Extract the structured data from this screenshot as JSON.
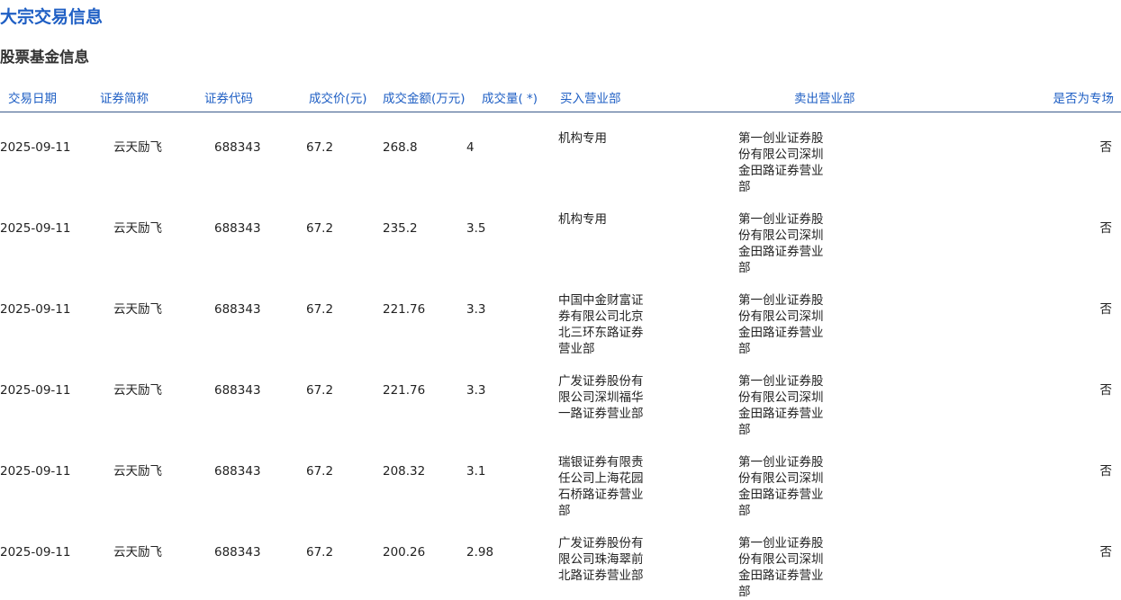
{
  "title": "大宗交易信息",
  "subtitle": "股票基金信息",
  "headers": [
    "交易日期",
    "证券简称",
    "证券代码",
    "成交价(元)",
    "成交金额(万元)",
    "成交量( *)",
    "买入营业部",
    "卖出营业部",
    "是否为专场"
  ],
  "rows": [
    {
      "date": "2025-09-11",
      "name": "云天励飞",
      "code": "688343",
      "price": "67.2",
      "amount": "268.8",
      "volume": "4",
      "buyer": "机构专用",
      "seller": "第一创业证券股份有限公司深圳金田路证券营业部",
      "special": "否"
    },
    {
      "date": "2025-09-11",
      "name": "云天励飞",
      "code": "688343",
      "price": "67.2",
      "amount": "235.2",
      "volume": "3.5",
      "buyer": "机构专用",
      "seller": "第一创业证券股份有限公司深圳金田路证券营业部",
      "special": "否"
    },
    {
      "date": "2025-09-11",
      "name": "云天励飞",
      "code": "688343",
      "price": "67.2",
      "amount": "221.76",
      "volume": "3.3",
      "buyer": "中国中金财富证券有限公司北京北三环东路证券营业部",
      "seller": "第一创业证券股份有限公司深圳金田路证券营业部",
      "special": "否"
    },
    {
      "date": "2025-09-11",
      "name": "云天励飞",
      "code": "688343",
      "price": "67.2",
      "amount": "221.76",
      "volume": "3.3",
      "buyer": "广发证券股份有限公司深圳福华一路证券营业部",
      "seller": "第一创业证券股份有限公司深圳金田路证券营业部",
      "special": "否"
    },
    {
      "date": "2025-09-11",
      "name": "云天励飞",
      "code": "688343",
      "price": "67.2",
      "amount": "208.32",
      "volume": "3.1",
      "buyer": "瑞银证券有限责任公司上海花园石桥路证券营业部",
      "seller": "第一创业证券股份有限公司深圳金田路证券营业部",
      "special": "否"
    },
    {
      "date": "2025-09-11",
      "name": "云天励飞",
      "code": "688343",
      "price": "67.2",
      "amount": "200.26",
      "volume": "2.98",
      "buyer": "广发证券股份有限公司珠海翠前北路证券营业部",
      "seller": "第一创业证券股份有限公司深圳金田路证券营业部",
      "special": "否"
    }
  ]
}
